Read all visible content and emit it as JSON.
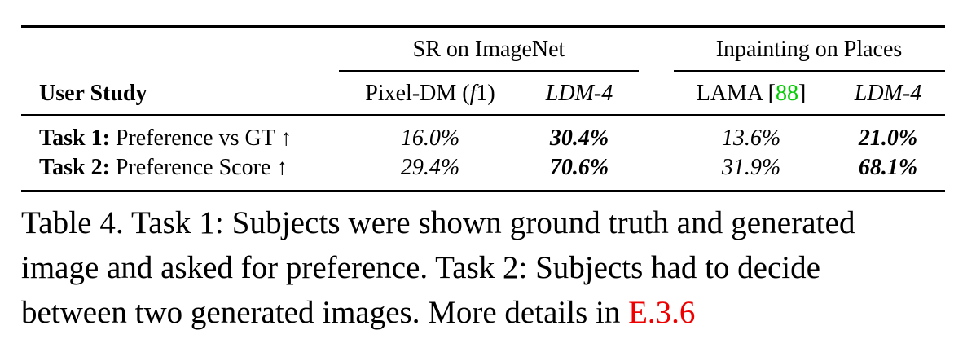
{
  "table": {
    "group_headers": [
      "SR on ImageNet",
      "Inpainting on Places"
    ],
    "row_header": "User Study",
    "columns": {
      "pixel_dm": "Pixel-DM (",
      "pixel_dm_f": "f",
      "pixel_dm_end": "1)",
      "ldm4_a": "LDM-4",
      "lama": "LAMA [",
      "lama_ref": "88",
      "lama_end": "]",
      "ldm4_b": "LDM-4"
    },
    "rows": [
      {
        "task_label": "Task 1:",
        "task_desc": "Preference vs GT ↑",
        "values": [
          "16.0%",
          "30.4%",
          "13.6%",
          "21.0%"
        ]
      },
      {
        "task_label": "Task 2:",
        "task_desc": "Preference Score ↑",
        "values": [
          "29.4%",
          "70.6%",
          "31.9%",
          "68.1%"
        ]
      }
    ]
  },
  "caption": {
    "line1": "Table 4. Task 1: Subjects were shown ground truth and generated",
    "line2": "image and asked for preference.  Task 2: Subjects had to decide",
    "line3": "between two generated images. More details in ",
    "ref": "E.3.6"
  }
}
